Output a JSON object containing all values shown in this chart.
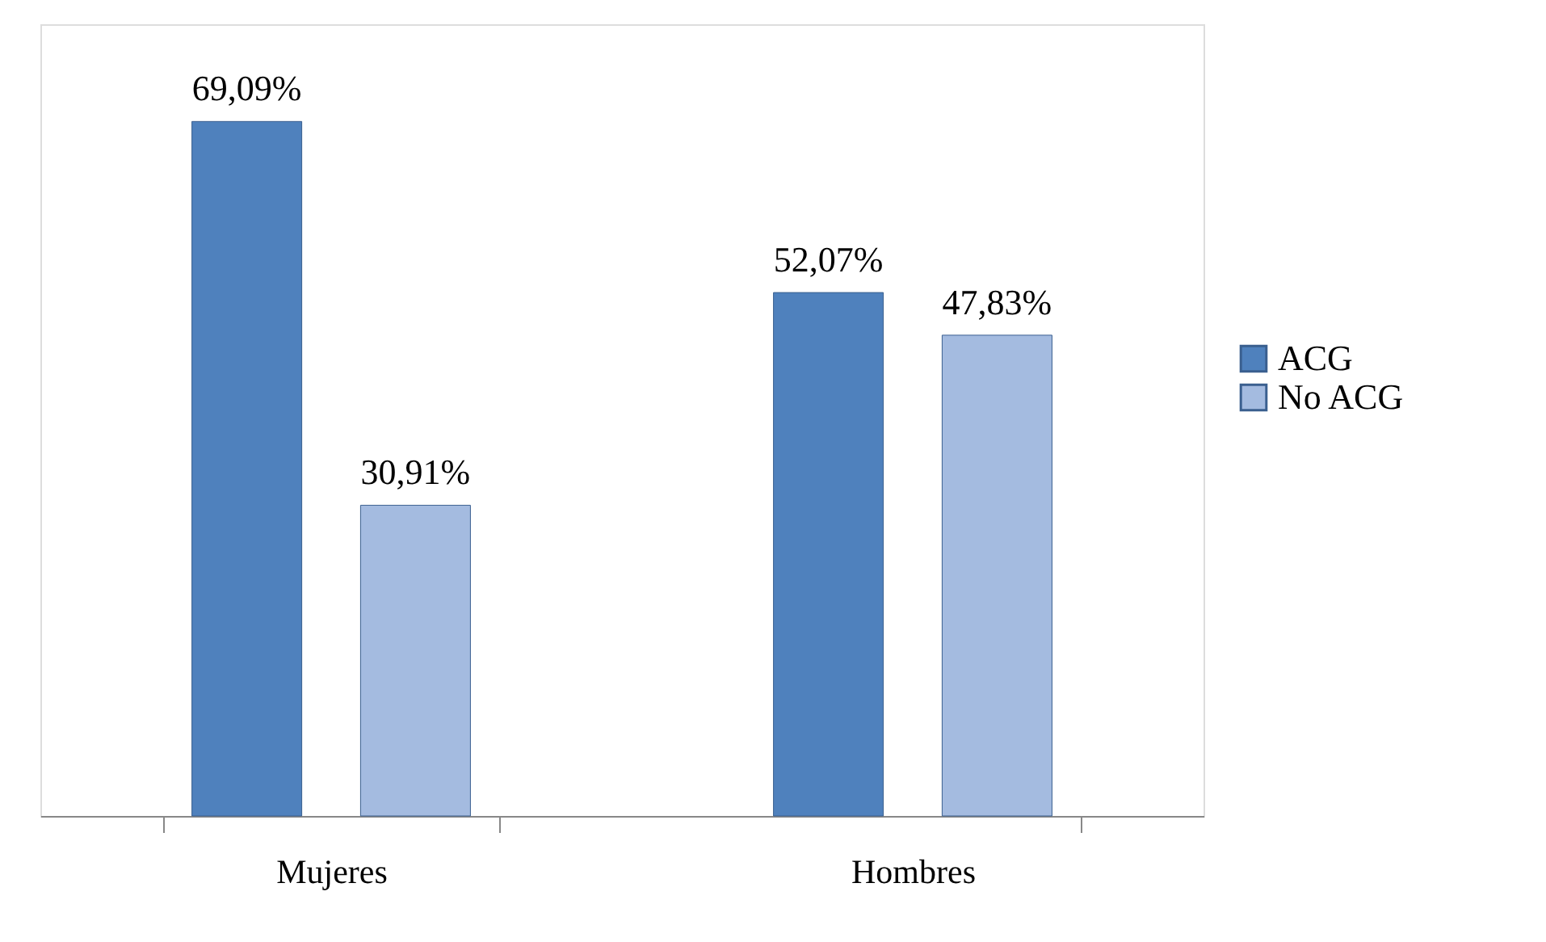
{
  "chart_data": {
    "type": "bar",
    "categories": [
      "Mujeres",
      "Hombres"
    ],
    "series": [
      {
        "name": "ACG",
        "color": "#4f81bd",
        "values": [
          69.09,
          52.07
        ],
        "value_labels": [
          "69,09%",
          "52,07%"
        ]
      },
      {
        "name": "No ACG",
        "color": "#a4bbe0",
        "values": [
          30.91,
          47.83
        ],
        "value_labels": [
          "30,91%",
          "47,83%"
        ]
      }
    ],
    "legend": "right",
    "tick_labels": "x"
  }
}
